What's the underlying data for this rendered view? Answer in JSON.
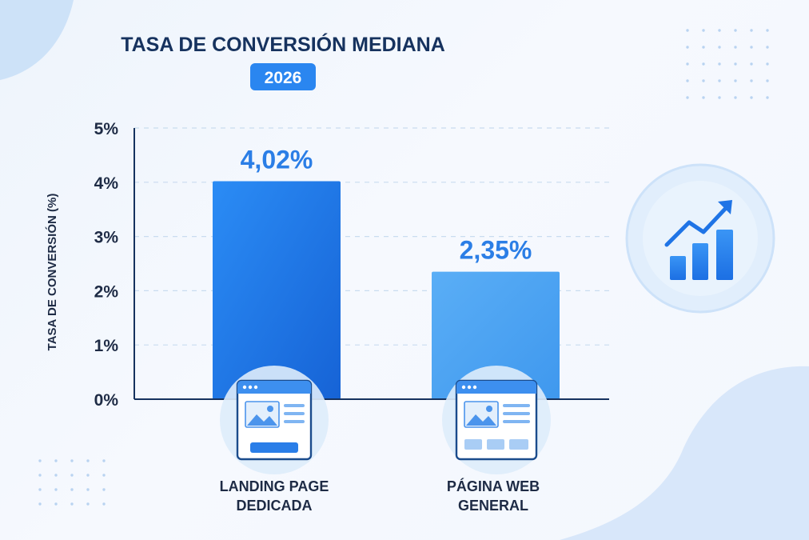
{
  "header": {
    "title": "TASA DE CONVERSIÓN MEDIANA",
    "year_badge": "2026"
  },
  "colors": {
    "title": "#16325e",
    "axis_text": "#1e2b45",
    "badge_bg": "#2a86f0",
    "bar_primary": "#1f74e6",
    "bar_secondary": "#4fa5f2",
    "value_label": "#2b7ee6",
    "icon_circle": "#dcebfb",
    "accent": "#2f85ee"
  },
  "icons": {
    "trend": "growth-chart-icon",
    "landing": "landing-page-icon",
    "webpage": "web-page-icon"
  },
  "chart_data": {
    "type": "bar",
    "title": "TASA DE CONVERSIÓN MEDIANA",
    "subtitle": "2026",
    "ylabel": "TASA DE CONVERSIÓN (%)",
    "xlabel": "",
    "ylim": [
      0,
      5
    ],
    "yticks": [
      "0%",
      "1%",
      "2%",
      "3%",
      "4%",
      "5%"
    ],
    "grid": true,
    "categories": [
      [
        "LANDING PAGE",
        "DEDICADA"
      ],
      [
        "PÁGINA WEB",
        "GENERAL"
      ]
    ],
    "values": [
      4.02,
      2.35
    ],
    "value_labels": [
      "4,02%",
      "2,35%"
    ]
  }
}
